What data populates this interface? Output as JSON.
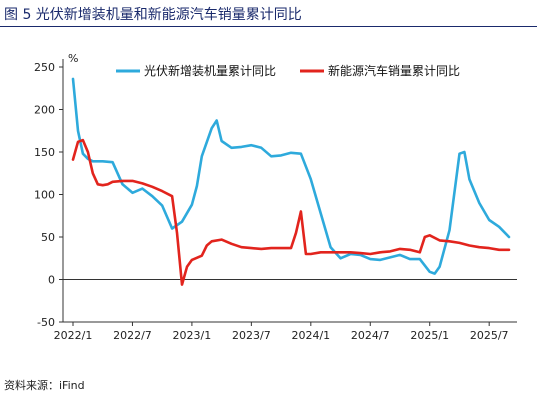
{
  "title": "图 5   光伏新增装机量和新能源汽车销量累计同比",
  "source": "资料来源：iFind",
  "chart_data": {
    "type": "line",
    "unit_label": "%",
    "ylim": [
      -50,
      250
    ],
    "yticks": [
      -50,
      0,
      50,
      100,
      150,
      200,
      250
    ],
    "xlabels": [
      "2022/1",
      "2022/7",
      "2023/1",
      "2023/7",
      "2024/1",
      "2024/7",
      "2025/1",
      "2025/7"
    ],
    "xlabel_index": [
      0,
      6,
      12,
      18,
      24,
      30,
      36,
      42
    ],
    "legend_position": "top",
    "grid": false,
    "series": [
      {
        "name": "光伏新增装机量累计同比",
        "color": "#2eaadc",
        "points": [
          [
            0,
            236
          ],
          [
            0.5,
            175
          ],
          [
            1,
            148
          ],
          [
            1.5,
            142
          ],
          [
            2,
            139
          ],
          [
            3,
            139
          ],
          [
            4,
            138
          ],
          [
            5,
            112
          ],
          [
            6,
            102
          ],
          [
            7,
            107
          ],
          [
            8,
            98
          ],
          [
            9,
            87
          ],
          [
            10,
            60
          ],
          [
            11,
            68
          ],
          [
            12,
            88
          ],
          [
            12.5,
            110
          ],
          [
            13,
            145
          ],
          [
            14,
            178
          ],
          [
            14.5,
            187
          ],
          [
            15,
            163
          ],
          [
            16,
            155
          ],
          [
            17,
            156
          ],
          [
            18,
            158
          ],
          [
            19,
            155
          ],
          [
            20,
            145
          ],
          [
            21,
            146
          ],
          [
            22,
            149
          ],
          [
            23,
            148
          ],
          [
            24,
            118
          ],
          [
            25,
            78
          ],
          [
            26,
            38
          ],
          [
            27,
            25
          ],
          [
            28,
            30
          ],
          [
            29,
            29
          ],
          [
            30,
            24
          ],
          [
            31,
            23
          ],
          [
            32,
            26
          ],
          [
            33,
            29
          ],
          [
            34,
            24
          ],
          [
            35,
            24
          ],
          [
            36,
            9
          ],
          [
            36.5,
            7
          ],
          [
            37,
            15
          ],
          [
            38,
            58
          ],
          [
            39,
            148
          ],
          [
            39.5,
            150
          ],
          [
            40,
            118
          ],
          [
            41,
            90
          ],
          [
            42,
            70
          ],
          [
            43,
            62
          ],
          [
            44,
            50
          ]
        ]
      },
      {
        "name": "新能源汽车销量累计同比",
        "color": "#e2241d",
        "points": [
          [
            0,
            141
          ],
          [
            0.5,
            162
          ],
          [
            1,
            164
          ],
          [
            1.5,
            150
          ],
          [
            2,
            125
          ],
          [
            2.5,
            112
          ],
          [
            3,
            111
          ],
          [
            3.5,
            112
          ],
          [
            4,
            115
          ],
          [
            5,
            116
          ],
          [
            6,
            116
          ],
          [
            7,
            113
          ],
          [
            8,
            109
          ],
          [
            9,
            104
          ],
          [
            10,
            98
          ],
          [
            10.5,
            55
          ],
          [
            11,
            -6
          ],
          [
            11.5,
            15
          ],
          [
            12,
            23
          ],
          [
            13,
            28
          ],
          [
            13.5,
            40
          ],
          [
            14,
            45
          ],
          [
            15,
            47
          ],
          [
            16,
            42
          ],
          [
            17,
            38
          ],
          [
            18,
            37
          ],
          [
            19,
            36
          ],
          [
            20,
            37
          ],
          [
            21,
            37
          ],
          [
            22,
            37
          ],
          [
            22.5,
            55
          ],
          [
            23,
            80
          ],
          [
            23.5,
            30
          ],
          [
            24,
            30
          ],
          [
            25,
            32
          ],
          [
            26,
            32
          ],
          [
            27,
            32
          ],
          [
            28,
            32
          ],
          [
            29,
            31
          ],
          [
            30,
            30
          ],
          [
            31,
            32
          ],
          [
            32,
            33
          ],
          [
            33,
            36
          ],
          [
            34,
            35
          ],
          [
            35,
            32
          ],
          [
            35.5,
            50
          ],
          [
            36,
            52
          ],
          [
            37,
            46
          ],
          [
            38,
            45
          ],
          [
            39,
            43
          ],
          [
            40,
            40
          ],
          [
            41,
            38
          ],
          [
            42,
            37
          ],
          [
            43,
            35
          ],
          [
            44,
            35
          ]
        ]
      }
    ]
  }
}
